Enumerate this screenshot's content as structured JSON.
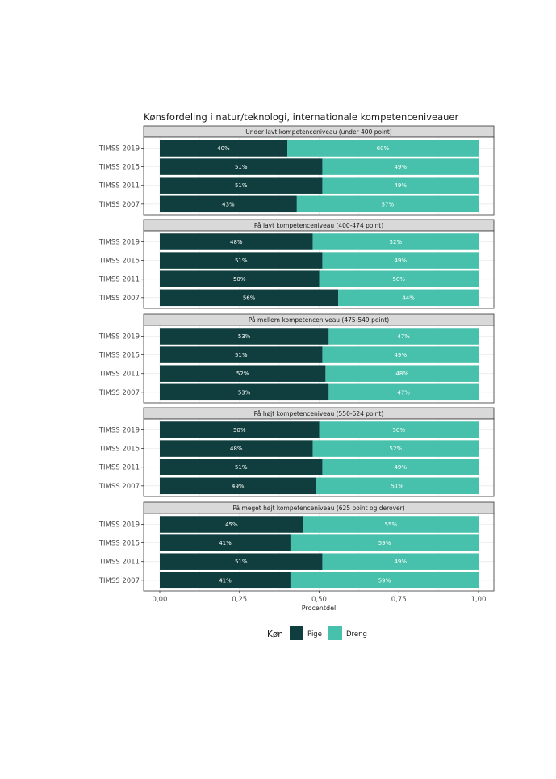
{
  "chart_data": {
    "type": "bar",
    "orientation": "horizontal",
    "stacked": true,
    "title": "Kønsfordeling i natur/teknologi, internationale kompetenceniveauer",
    "xlabel": "Procentdel",
    "xlim": [
      0,
      1
    ],
    "xticks": [
      "0,00",
      "0,25",
      "0,50",
      "0,75",
      "1,00"
    ],
    "xtick_values": [
      0,
      0.25,
      0.5,
      0.75,
      1.0
    ],
    "grid": true,
    "legend": {
      "title": "Køn",
      "position": "bottom",
      "entries": [
        {
          "name": "Pige",
          "color": "#103d3d"
        },
        {
          "name": "Dreng",
          "color": "#47c1ab"
        }
      ]
    },
    "panels": [
      {
        "title": "Under lavt kompetenceniveau (under 400 point)",
        "categories": [
          "TIMSS 2019",
          "TIMSS 2015",
          "TIMSS 2011",
          "TIMSS 2007"
        ],
        "series": [
          {
            "name": "Pige",
            "values": [
              0.4,
              0.51,
              0.51,
              0.43
            ],
            "labels": [
              "40%",
              "51%",
              "51%",
              "43%"
            ]
          },
          {
            "name": "Dreng",
            "values": [
              0.6,
              0.49,
              0.49,
              0.57
            ],
            "labels": [
              "60%",
              "49%",
              "49%",
              "57%"
            ]
          }
        ]
      },
      {
        "title": "På lavt kompetenceniveau (400-474 point)",
        "categories": [
          "TIMSS 2019",
          "TIMSS 2015",
          "TIMSS 2011",
          "TIMSS 2007"
        ],
        "series": [
          {
            "name": "Pige",
            "values": [
              0.48,
              0.51,
              0.5,
              0.56
            ],
            "labels": [
              "48%",
              "51%",
              "50%",
              "56%"
            ]
          },
          {
            "name": "Dreng",
            "values": [
              0.52,
              0.49,
              0.5,
              0.44
            ],
            "labels": [
              "52%",
              "49%",
              "50%",
              "44%"
            ]
          }
        ]
      },
      {
        "title": "På mellem kompetenceniveau (475-549 point)",
        "categories": [
          "TIMSS 2019",
          "TIMSS 2015",
          "TIMSS 2011",
          "TIMSS 2007"
        ],
        "series": [
          {
            "name": "Pige",
            "values": [
              0.53,
              0.51,
              0.52,
              0.53
            ],
            "labels": [
              "53%",
              "51%",
              "52%",
              "53%"
            ]
          },
          {
            "name": "Dreng",
            "values": [
              0.47,
              0.49,
              0.48,
              0.47
            ],
            "labels": [
              "47%",
              "49%",
              "48%",
              "47%"
            ]
          }
        ]
      },
      {
        "title": "På højt kompetenceniveau (550-624 point)",
        "categories": [
          "TIMSS 2019",
          "TIMSS 2015",
          "TIMSS 2011",
          "TIMSS 2007"
        ],
        "series": [
          {
            "name": "Pige",
            "values": [
              0.5,
              0.48,
              0.51,
              0.49
            ],
            "labels": [
              "50%",
              "48%",
              "51%",
              "49%"
            ]
          },
          {
            "name": "Dreng",
            "values": [
              0.5,
              0.52,
              0.49,
              0.51
            ],
            "labels": [
              "50%",
              "52%",
              "49%",
              "51%"
            ]
          }
        ]
      },
      {
        "title": "På meget højt kompetenceniveau  (625 point og derover)",
        "categories": [
          "TIMSS 2019",
          "TIMSS 2015",
          "TIMSS 2011",
          "TIMSS 2007"
        ],
        "series": [
          {
            "name": "Pige",
            "values": [
              0.45,
              0.41,
              0.51,
              0.41
            ],
            "labels": [
              "45%",
              "41%",
              "51%",
              "41%"
            ]
          },
          {
            "name": "Dreng",
            "values": [
              0.55,
              0.59,
              0.49,
              0.59
            ],
            "labels": [
              "55%",
              "59%",
              "49%",
              "59%"
            ]
          }
        ]
      }
    ]
  }
}
